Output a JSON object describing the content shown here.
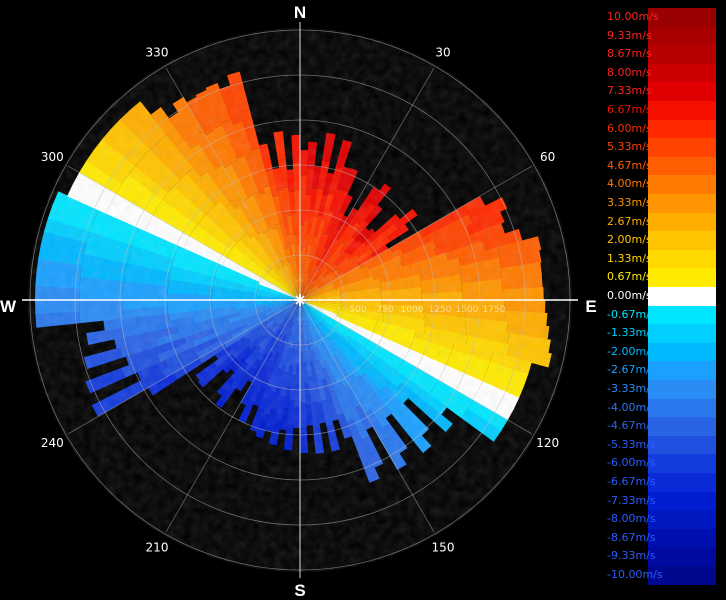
{
  "compass": {
    "north": "N",
    "south": "S",
    "east": "E",
    "west": "W"
  },
  "bearings": [
    {
      "deg": 30,
      "label": "30"
    },
    {
      "deg": 60,
      "label": "60"
    },
    {
      "deg": 120,
      "label": "120"
    },
    {
      "deg": 150,
      "label": "150"
    },
    {
      "deg": 210,
      "label": "210"
    },
    {
      "deg": 240,
      "label": "240"
    },
    {
      "deg": 300,
      "label": "300"
    },
    {
      "deg": 330,
      "label": "330"
    }
  ],
  "range_labels": [
    "500",
    "750",
    "1000",
    "1250",
    "1500",
    "1750"
  ],
  "legend": {
    "entries": [
      {
        "label": "10.00m/s",
        "value": 10.0,
        "color": "#990000"
      },
      {
        "label": "9.33m/s",
        "value": 9.33,
        "color": "#a80000"
      },
      {
        "label": "8.67m/s",
        "value": 8.67,
        "color": "#b80000"
      },
      {
        "label": "8.00m/s",
        "value": 8.0,
        "color": "#cc0000"
      },
      {
        "label": "7.33m/s",
        "value": 7.33,
        "color": "#e00000"
      },
      {
        "label": "6.67m/s",
        "value": 6.67,
        "color": "#f51000"
      },
      {
        "label": "6.00m/s",
        "value": 6.0,
        "color": "#ff2a00"
      },
      {
        "label": "5.33m/s",
        "value": 5.33,
        "color": "#ff4400"
      },
      {
        "label": "4.67m/s",
        "value": 4.67,
        "color": "#ff5e00"
      },
      {
        "label": "4.00m/s",
        "value": 4.0,
        "color": "#ff7a00"
      },
      {
        "label": "3.33m/s",
        "value": 3.33,
        "color": "#ff9500"
      },
      {
        "label": "2.67m/s",
        "value": 2.67,
        "color": "#ffae00"
      },
      {
        "label": "2.00m/s",
        "value": 2.0,
        "color": "#ffc400"
      },
      {
        "label": "1.33m/s",
        "value": 1.33,
        "color": "#ffd800"
      },
      {
        "label": "0.67m/s",
        "value": 0.67,
        "color": "#ffeb00"
      },
      {
        "label": "0.00m/s",
        "value": 0.0,
        "color": "#ffffff"
      },
      {
        "label": "-0.67m/s",
        "value": -0.67,
        "color": "#00e5ff"
      },
      {
        "label": "-1.33m/s",
        "value": -1.33,
        "color": "#00cfff"
      },
      {
        "label": "-2.00m/s",
        "value": -2.0,
        "color": "#00b8ff"
      },
      {
        "label": "-2.67m/s",
        "value": -2.67,
        "color": "#1aa0ff"
      },
      {
        "label": "-3.33m/s",
        "value": -3.33,
        "color": "#2a8cf5"
      },
      {
        "label": "-4.00m/s",
        "value": -4.0,
        "color": "#2a78ee"
      },
      {
        "label": "-4.67m/s",
        "value": -4.67,
        "color": "#2a64e6"
      },
      {
        "label": "-5.33m/s",
        "value": -5.33,
        "color": "#2050e0"
      },
      {
        "label": "-6.00m/s",
        "value": -6.0,
        "color": "#143cdc"
      },
      {
        "label": "-6.67m/s",
        "value": -6.67,
        "color": "#0a2ad8"
      },
      {
        "label": "-7.33m/s",
        "value": -7.33,
        "color": "#001ed0"
      },
      {
        "label": "-8.00m/s",
        "value": -8.0,
        "color": "#0018c0"
      },
      {
        "label": "-8.67m/s",
        "value": -8.67,
        "color": "#0010b0"
      },
      {
        "label": "-9.33m/s",
        "value": -9.33,
        "color": "#000aa0"
      },
      {
        "label": "-10.00m/s",
        "value": -10.0,
        "color": "#000890"
      }
    ]
  }
}
